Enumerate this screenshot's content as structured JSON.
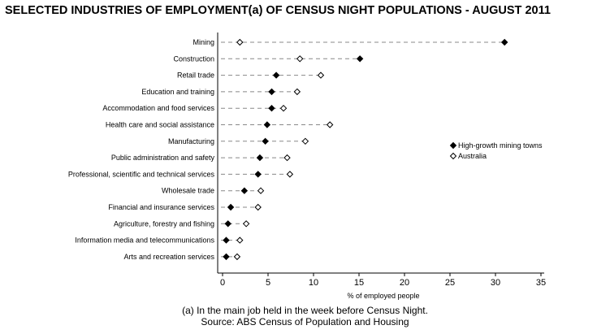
{
  "title": "SELECTED INDUSTRIES OF EMPLOYMENT(a) OF CENSUS NIGHT POPULATIONS - AUGUST 2011",
  "footnote": "(a) In the main job held in the week before Census Night.",
  "source": "Source: ABS Census of Population and Housing",
  "chart_data": {
    "type": "scatter",
    "title": "SELECTED INDUSTRIES OF EMPLOYMENT(a) OF CENSUS NIGHT POPULATIONS - AUGUST 2011",
    "xlabel": "% of employed people",
    "ylabel": "",
    "xlim": [
      0,
      35
    ],
    "xticks": [
      0,
      5,
      10,
      15,
      20,
      25,
      30,
      35
    ],
    "grid": false,
    "legend_placement": "right",
    "categories": [
      "Mining",
      "Construction",
      "Retail trade",
      "Education and training",
      "Accommodation and food services",
      "Health care and social assistance",
      "Manufacturing",
      "Public administration and safety",
      "Professional, scientific and technical services",
      "Wholesale trade",
      "Financial and insurance services",
      "Agriculture, forestry and fishing",
      "Information media and telecommunications",
      "Arts and recreation services"
    ],
    "series": [
      {
        "name": "High-growth mining towns",
        "marker": "filled-diamond",
        "color": "#000000",
        "values": [
          31.0,
          15.1,
          5.9,
          5.4,
          5.4,
          4.9,
          4.7,
          4.1,
          3.9,
          2.4,
          0.9,
          0.6,
          0.4,
          0.4
        ]
      },
      {
        "name": "Australia",
        "marker": "open-diamond",
        "color": "#000000",
        "values": [
          1.9,
          8.5,
          10.8,
          8.2,
          6.7,
          11.8,
          9.1,
          7.1,
          7.4,
          4.2,
          3.9,
          2.6,
          1.9,
          1.6
        ]
      }
    ]
  }
}
